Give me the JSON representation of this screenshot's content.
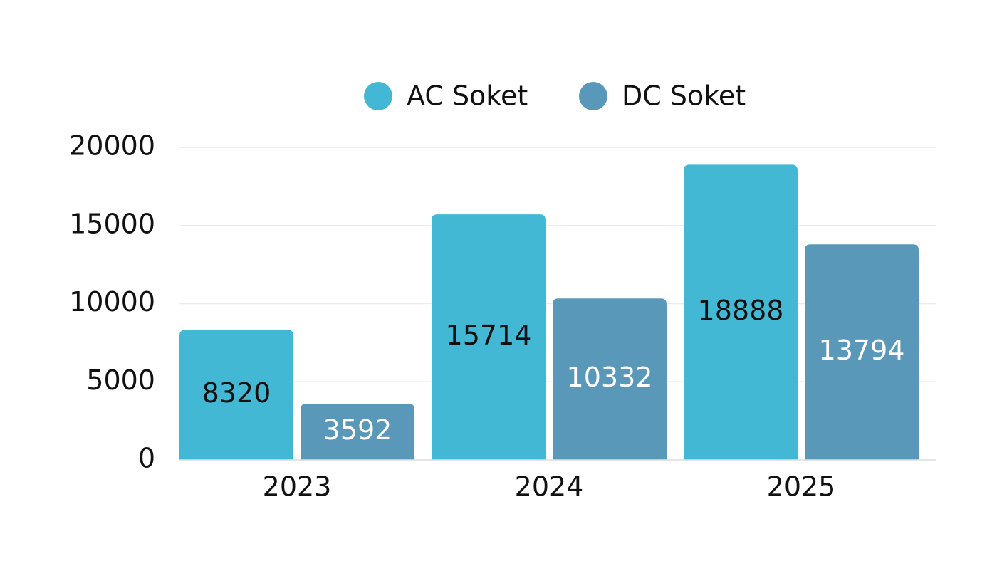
{
  "chart_data": {
    "type": "bar",
    "categories": [
      "2023",
      "2024",
      "2025"
    ],
    "series": [
      {
        "name": "AC Soket",
        "color": "#42b8d5",
        "values": [
          8320,
          15714,
          18888
        ]
      },
      {
        "name": "DC Soket",
        "color": "#5a98ba",
        "values": [
          3592,
          10332,
          13794
        ]
      }
    ],
    "ylim": [
      0,
      20000
    ],
    "yticks": [
      0,
      5000,
      10000,
      15000,
      20000
    ],
    "grid": true,
    "legend": "top"
  }
}
